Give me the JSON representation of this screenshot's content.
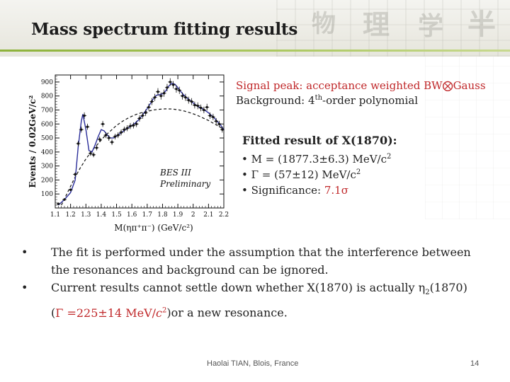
{
  "slide": {
    "title": "Mass spectrum fitting results",
    "signal_line": "Signal peak: acceptance weighted BW⨂Gauss",
    "background_pre": "Background: 4",
    "background_sup": "th",
    "background_post": "-order polynomial",
    "fitted_heading": "Fitted result of X(1870):",
    "fit_m_pre": "• M = (1877.3±6.3) MeV/c",
    "fit_m_sup": "2",
    "fit_g_pre": "• Γ = (57±12) MeV/c",
    "fit_g_sup": "2",
    "fit_sig_pre": "• Significance: ",
    "fit_sig_val": "7.1σ",
    "bullet_dot": "•",
    "bullet1": "The fit is performed under the assumption that the interference between the resonances and background can be ignored.",
    "bullet2_a": "Current results cannot settle down whether X(1870) is actually η",
    "bullet2_sub": "2",
    "bullet2_b": "(1870) (",
    "bullet2_red": "Γ =225±14 MeV/",
    "bullet2_red_c": "c",
    "bullet2_red_sup": "2",
    "bullet2_c": ")or a new resonance.",
    "footer_author": "Haolai TIAN, Blois, France",
    "footer_page": "14"
  },
  "chart_data": {
    "type": "scatter",
    "ylabel": "Events / 0.02GeV/c²",
    "xlabel": "M(ηπ⁺π⁻) (GeV/c²)",
    "annotation_1": "BES III",
    "annotation_2": "Preliminary",
    "xlim": [
      1.1,
      2.2
    ],
    "ylim": [
      0,
      950
    ],
    "xticks": [
      "1.1",
      "1.2",
      "1.3",
      "1.4",
      "1.5",
      "1.6",
      "1.7",
      "1.8",
      "1.9",
      "2",
      "2.1",
      "2.2"
    ],
    "yticks": [
      "100",
      "200",
      "300",
      "400",
      "500",
      "600",
      "700",
      "800",
      "900"
    ],
    "series": [
      {
        "values": [
          [
            1.12,
            30
          ],
          [
            1.16,
            60
          ],
          [
            1.2,
            130
          ],
          [
            1.23,
            240
          ],
          [
            1.25,
            460
          ],
          [
            1.27,
            560
          ],
          [
            1.29,
            660
          ],
          [
            1.31,
            580
          ],
          [
            1.33,
            390
          ],
          [
            1.35,
            380
          ],
          [
            1.37,
            430
          ],
          [
            1.39,
            490
          ],
          [
            1.41,
            600
          ],
          [
            1.43,
            520
          ],
          [
            1.45,
            500
          ],
          [
            1.47,
            470
          ],
          [
            1.49,
            510
          ],
          [
            1.51,
            520
          ],
          [
            1.53,
            540
          ],
          [
            1.55,
            560
          ],
          [
            1.57,
            570
          ],
          [
            1.59,
            585
          ],
          [
            1.61,
            590
          ],
          [
            1.63,
            600
          ],
          [
            1.65,
            640
          ],
          [
            1.67,
            660
          ],
          [
            1.69,
            680
          ],
          [
            1.71,
            720
          ],
          [
            1.73,
            760
          ],
          [
            1.75,
            790
          ],
          [
            1.77,
            830
          ],
          [
            1.79,
            800
          ],
          [
            1.81,
            820
          ],
          [
            1.83,
            860
          ],
          [
            1.85,
            900
          ],
          [
            1.87,
            880
          ],
          [
            1.89,
            850
          ],
          [
            1.91,
            840
          ],
          [
            1.93,
            800
          ],
          [
            1.95,
            790
          ],
          [
            1.97,
            770
          ],
          [
            1.99,
            760
          ],
          [
            2.01,
            735
          ],
          [
            2.03,
            730
          ],
          [
            2.05,
            715
          ],
          [
            2.07,
            700
          ],
          [
            2.09,
            720
          ],
          [
            2.11,
            660
          ],
          [
            2.13,
            650
          ],
          [
            2.15,
            620
          ],
          [
            2.17,
            600
          ],
          [
            2.19,
            560
          ]
        ]
      },
      {
        "values": [
          [
            1.12,
            20
          ],
          [
            1.16,
            60
          ],
          [
            1.2,
            110
          ],
          [
            1.23,
            200
          ],
          [
            1.25,
            440
          ],
          [
            1.27,
            620
          ],
          [
            1.28,
            670
          ],
          [
            1.3,
            560
          ],
          [
            1.32,
            410
          ],
          [
            1.34,
            400
          ],
          [
            1.36,
            450
          ],
          [
            1.38,
            510
          ],
          [
            1.4,
            560
          ],
          [
            1.42,
            550
          ],
          [
            1.44,
            520
          ],
          [
            1.46,
            500
          ],
          [
            1.48,
            500
          ],
          [
            1.5,
            515
          ],
          [
            1.52,
            530
          ],
          [
            1.54,
            545
          ],
          [
            1.56,
            560
          ],
          [
            1.58,
            575
          ],
          [
            1.6,
            590
          ],
          [
            1.62,
            605
          ],
          [
            1.64,
            625
          ],
          [
            1.66,
            650
          ],
          [
            1.68,
            680
          ],
          [
            1.7,
            710
          ],
          [
            1.72,
            745
          ],
          [
            1.74,
            780
          ],
          [
            1.76,
            805
          ],
          [
            1.78,
            810
          ],
          [
            1.8,
            815
          ],
          [
            1.82,
            835
          ],
          [
            1.84,
            870
          ],
          [
            1.86,
            890
          ],
          [
            1.88,
            885
          ],
          [
            1.9,
            860
          ],
          [
            1.92,
            830
          ],
          [
            1.94,
            805
          ],
          [
            1.96,
            785
          ],
          [
            1.98,
            770
          ],
          [
            2.0,
            750
          ],
          [
            2.02,
            735
          ],
          [
            2.04,
            720
          ],
          [
            2.06,
            710
          ],
          [
            2.08,
            695
          ],
          [
            2.1,
            680
          ],
          [
            2.12,
            660
          ],
          [
            2.14,
            640
          ],
          [
            2.16,
            615
          ],
          [
            2.18,
            590
          ],
          [
            2.2,
            560
          ]
        ]
      },
      {
        "values": [
          [
            1.14,
            20
          ],
          [
            1.18,
            110
          ],
          [
            1.22,
            200
          ],
          [
            1.26,
            280
          ],
          [
            1.3,
            350
          ],
          [
            1.34,
            410
          ],
          [
            1.38,
            460
          ],
          [
            1.42,
            510
          ],
          [
            1.46,
            550
          ],
          [
            1.5,
            590
          ],
          [
            1.54,
            620
          ],
          [
            1.58,
            645
          ],
          [
            1.62,
            665
          ],
          [
            1.66,
            680
          ],
          [
            1.7,
            690
          ],
          [
            1.74,
            700
          ],
          [
            1.78,
            705
          ],
          [
            1.82,
            708
          ],
          [
            1.86,
            707
          ],
          [
            1.9,
            702
          ],
          [
            1.94,
            693
          ],
          [
            1.98,
            680
          ],
          [
            2.02,
            665
          ],
          [
            2.06,
            645
          ],
          [
            2.1,
            625
          ],
          [
            2.14,
            600
          ],
          [
            2.18,
            575
          ],
          [
            2.2,
            560
          ]
        ]
      }
    ]
  }
}
